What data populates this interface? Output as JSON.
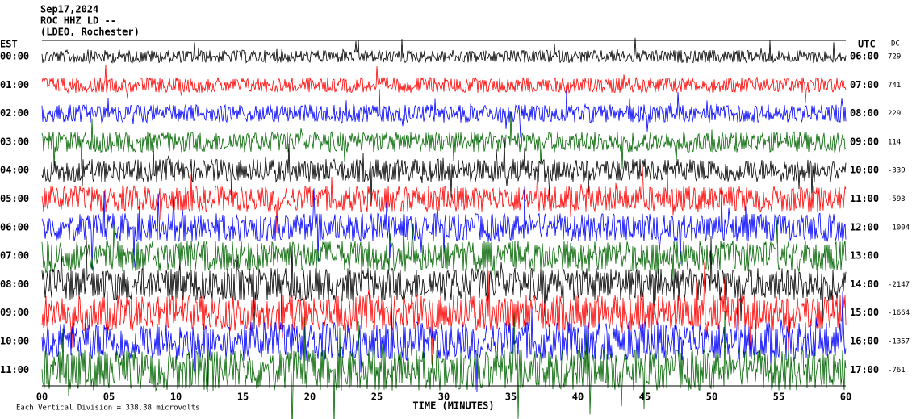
{
  "header": {
    "date": "Sep17,2024",
    "station": "ROC HHZ LD --",
    "location": "(LDEO, Rochester)"
  },
  "left_zone": "EST",
  "right_zone": "UTC",
  "dc_header": "DC",
  "rows": [
    {
      "est": "00:00",
      "utc": "06:00",
      "dc": "729"
    },
    {
      "est": "01:00",
      "utc": "07:00",
      "dc": "741"
    },
    {
      "est": "02:00",
      "utc": "08:00",
      "dc": "229"
    },
    {
      "est": "03:00",
      "utc": "09:00",
      "dc": "114"
    },
    {
      "est": "04:00",
      "utc": "10:00",
      "dc": "-339"
    },
    {
      "est": "05:00",
      "utc": "11:00",
      "dc": "-593"
    },
    {
      "est": "06:00",
      "utc": "12:00",
      "dc": "-1004"
    },
    {
      "est": "07:00",
      "utc": "13:00",
      "dc": null
    },
    {
      "est": "08:00",
      "utc": "14:00",
      "dc": "-2147"
    },
    {
      "est": "09:00",
      "utc": "15:00",
      "dc": "-1664"
    },
    {
      "est": "10:00",
      "utc": "16:00",
      "dc": "-1357"
    },
    {
      "est": "11:00",
      "utc": "17:00",
      "dc": "-761"
    }
  ],
  "x_ticks": [
    "00",
    "05",
    "10",
    "15",
    "20",
    "25",
    "30",
    "35",
    "40",
    "45",
    "50",
    "55",
    "60"
  ],
  "x_label": "TIME (MINUTES)",
  "footer": "Each Vertical Division = 338.38 microvolts"
}
